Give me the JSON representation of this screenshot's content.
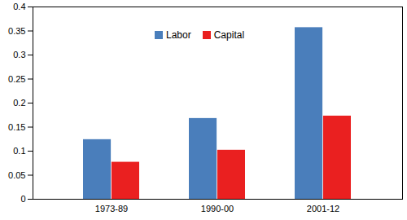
{
  "chart_data": {
    "type": "bar",
    "categories": [
      "1973-89",
      "1990-00",
      "2001-12"
    ],
    "series": [
      {
        "name": "Labor",
        "color": "#4a7ebb",
        "values": [
          0.124,
          0.168,
          0.357
        ]
      },
      {
        "name": "Capital",
        "color": "#ea2020",
        "values": [
          0.077,
          0.102,
          0.173
        ]
      }
    ],
    "ylim": [
      0,
      0.4
    ],
    "yticks": [
      0,
      0.05,
      0.1,
      0.15,
      0.2,
      0.25,
      0.3,
      0.35,
      0.4
    ],
    "legend": "top",
    "grid": false
  }
}
